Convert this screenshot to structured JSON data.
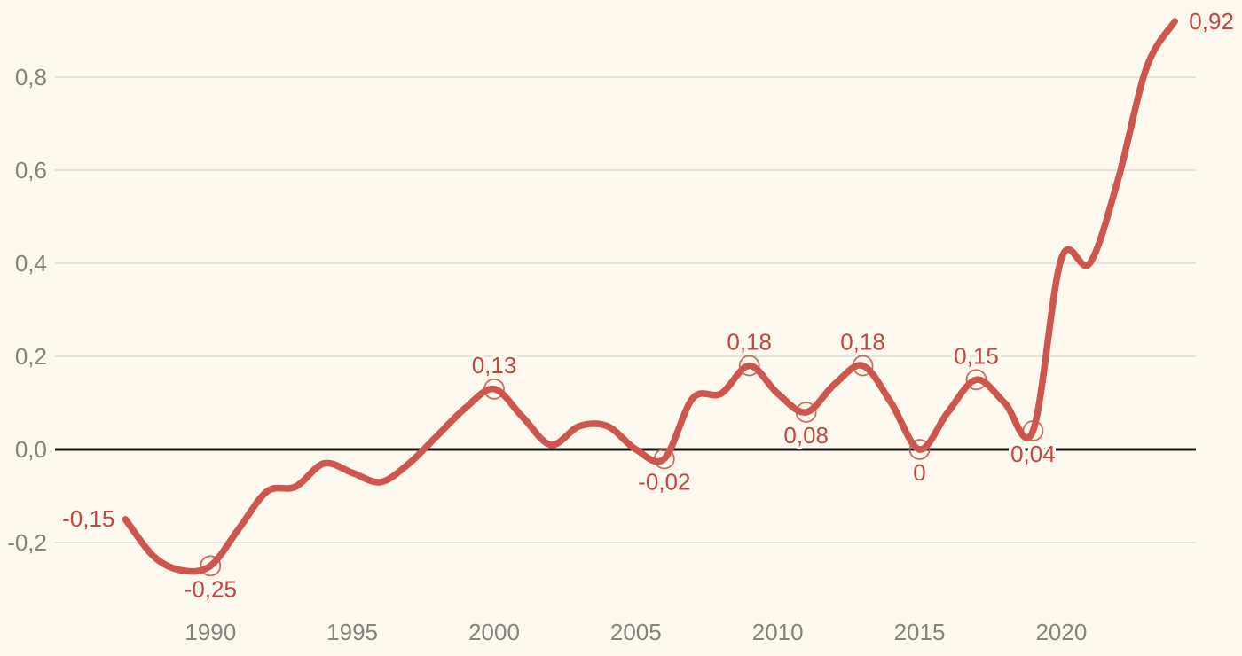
{
  "chart_data": {
    "type": "line",
    "title": "",
    "xlabel": "",
    "ylabel": "",
    "grid": true,
    "legend_position": "none",
    "zero_baseline": true,
    "decimal_separator": ",",
    "x": [
      1987,
      1988,
      1989,
      1990,
      1991,
      1992,
      1993,
      1994,
      1995,
      1996,
      1997,
      1998,
      1999,
      2000,
      2001,
      2002,
      2003,
      2004,
      2005,
      2006,
      2007,
      2008,
      2009,
      2010,
      2011,
      2012,
      2013,
      2014,
      2015,
      2016,
      2017,
      2018,
      2019,
      2020,
      2021,
      2022,
      2023,
      2024
    ],
    "values": [
      -0.15,
      -0.23,
      -0.26,
      -0.25,
      -0.17,
      -0.09,
      -0.08,
      -0.03,
      -0.05,
      -0.07,
      -0.03,
      0.03,
      0.09,
      0.13,
      0.07,
      0.01,
      0.05,
      0.05,
      0.0,
      -0.02,
      0.11,
      0.12,
      0.18,
      0.12,
      0.08,
      0.14,
      0.18,
      0.1,
      0.0,
      0.08,
      0.15,
      0.1,
      0.04,
      0.41,
      0.4,
      0.58,
      0.82,
      0.92
    ],
    "xlim": [
      1984.5,
      2024.8
    ],
    "ylim": [
      -0.44,
      0.97
    ],
    "xticks": [
      1990,
      1995,
      2000,
      2005,
      2010,
      2015,
      2020
    ],
    "yticks": [
      {
        "value": 0.8,
        "label": "0,8"
      },
      {
        "value": 0.6,
        "label": "0,6"
      },
      {
        "value": 0.4,
        "label": "0,4"
      },
      {
        "value": 0.2,
        "label": "0,2"
      },
      {
        "value": 0.0,
        "label": "0,0"
      },
      {
        "value": -0.2,
        "label": "-0,2"
      }
    ],
    "labeled_points": [
      {
        "x": 1987,
        "y": -0.15,
        "label": "-0,15",
        "position": "left",
        "marker": false
      },
      {
        "x": 1990,
        "y": -0.25,
        "label": "-0,25",
        "position": "below",
        "marker": true
      },
      {
        "x": 2000,
        "y": 0.13,
        "label": "0,13",
        "position": "above",
        "marker": true
      },
      {
        "x": 2006,
        "y": -0.02,
        "label": "-0,02",
        "position": "below",
        "marker": true
      },
      {
        "x": 2009,
        "y": 0.18,
        "label": "0,18",
        "position": "above",
        "marker": true
      },
      {
        "x": 2011,
        "y": 0.08,
        "label": "0,08",
        "position": "below",
        "marker": true
      },
      {
        "x": 2013,
        "y": 0.18,
        "label": "0,18",
        "position": "above",
        "marker": true
      },
      {
        "x": 2015,
        "y": 0.0,
        "label": "0",
        "position": "below",
        "marker": true
      },
      {
        "x": 2017,
        "y": 0.15,
        "label": "0,15",
        "position": "above",
        "marker": true
      },
      {
        "x": 2019,
        "y": 0.04,
        "label": "0,04",
        "position": "below",
        "marker": true
      },
      {
        "x": 2024,
        "y": 0.92,
        "label": "0,92",
        "position": "right",
        "marker": false
      }
    ],
    "colors": {
      "background": "#fdf9ee",
      "gridline": "#e6e3db",
      "zero_line": "#191714",
      "series": "#cd564f",
      "point_label": "#c04742",
      "axis_text": "#85847e"
    }
  }
}
